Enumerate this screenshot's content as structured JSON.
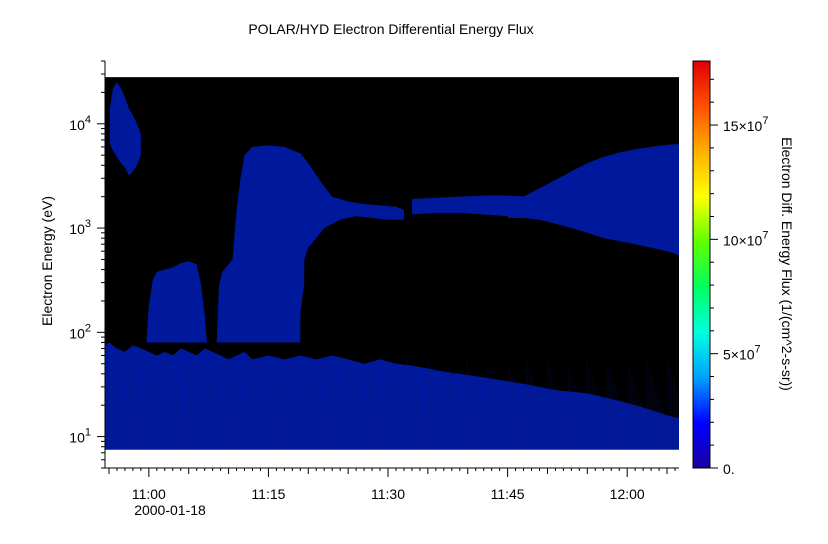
{
  "chart_data": {
    "type": "heatmap",
    "title": "POLAR/HYD  Electron Differential Energy Flux",
    "xlabel": "",
    "ylabel": "Electron Energy (eV)",
    "x_tick_labels": [
      "11:00",
      "11:15",
      "11:30",
      "11:45",
      "12:00"
    ],
    "x_tick_minutes": [
      660,
      675,
      690,
      705,
      720
    ],
    "x_range_minutes": [
      654.5,
      726.5
    ],
    "date_label": "2000-01-18",
    "y_scale": "log",
    "ylim": [
      5,
      40000
    ],
    "y_tick_values": [
      10,
      100,
      1000,
      10000
    ],
    "y_tick_labels": [
      {
        "base": "10",
        "exp": "1"
      },
      {
        "base": "10",
        "exp": "2"
      },
      {
        "base": "10",
        "exp": "3"
      },
      {
        "base": "10",
        "exp": "4"
      }
    ],
    "data_energy_range": [
      7.5,
      28000
    ],
    "background_color": "#000000",
    "colorbar": {
      "label": "Electron Diff. Energy Flux (1/(cm^2-s-sr))",
      "range": [
        0,
        178000000
      ],
      "tick_labels": [
        "0.",
        "5×10",
        "10×10",
        "15×10"
      ],
      "tick_exponents": [
        "",
        "7",
        "7",
        "7"
      ],
      "tick_values": [
        0,
        50000000,
        100000000,
        150000000
      ],
      "colors": [
        "#1a00a0",
        "#0000ff",
        "#00a0ff",
        "#00ffe0",
        "#00ff60",
        "#60ff00",
        "#ffff00",
        "#ffb000",
        "#ff5000",
        "#e00000"
      ]
    },
    "flux_regions": [
      {
        "name": "low-energy",
        "color": "#00199c",
        "time_start": 654.5,
        "time_end": 726.5,
        "upper_energy": [
          [
            654.5,
            75
          ],
          [
            655,
            80
          ],
          [
            656,
            70
          ],
          [
            657,
            65
          ],
          [
            658,
            75
          ],
          [
            659,
            70
          ],
          [
            660,
            65
          ],
          [
            661,
            60
          ],
          [
            662,
            65
          ],
          [
            663,
            60
          ],
          [
            664,
            70
          ],
          [
            665,
            65
          ],
          [
            666,
            60
          ],
          [
            667,
            70
          ],
          [
            668,
            65
          ],
          [
            669,
            60
          ],
          [
            670,
            55
          ],
          [
            671,
            60
          ],
          [
            672,
            65
          ],
          [
            673,
            55
          ],
          [
            675,
            60
          ],
          [
            677,
            55
          ],
          [
            679,
            60
          ],
          [
            681,
            55
          ],
          [
            683,
            60
          ],
          [
            685,
            55
          ],
          [
            687,
            50
          ],
          [
            689,
            55
          ],
          [
            691,
            50
          ],
          [
            693,
            48
          ],
          [
            695,
            45
          ],
          [
            697,
            42
          ],
          [
            699,
            40
          ],
          [
            701,
            38
          ],
          [
            703,
            36
          ],
          [
            705,
            34
          ],
          [
            707,
            32
          ],
          [
            709,
            30
          ],
          [
            711,
            28
          ],
          [
            713,
            27
          ],
          [
            715,
            26
          ],
          [
            717,
            24
          ],
          [
            719,
            22
          ],
          [
            721,
            20
          ],
          [
            723,
            18
          ],
          [
            725,
            16
          ],
          [
            726.5,
            15
          ]
        ]
      },
      {
        "name": "high-energy-early-burst",
        "color": "#00199c",
        "points": [
          [
            655.1,
            14000
          ],
          [
            655.5,
            22000
          ],
          [
            656,
            25000
          ],
          [
            656.5,
            22000
          ],
          [
            657,
            18000
          ],
          [
            657.5,
            14000
          ],
          [
            658,
            12000
          ],
          [
            658.5,
            10000
          ],
          [
            659,
            8000
          ],
          [
            659,
            5000
          ],
          [
            658.5,
            4000
          ],
          [
            658,
            3500
          ],
          [
            657.5,
            3200
          ],
          [
            657,
            3800
          ],
          [
            656.5,
            4200
          ],
          [
            656,
            4800
          ],
          [
            655.5,
            5500
          ],
          [
            655.1,
            6500
          ]
        ]
      },
      {
        "name": "mid-energy-ramp-11-05",
        "color": "#00199c",
        "points": [
          [
            659.7,
            80
          ],
          [
            660,
            180
          ],
          [
            660.5,
            320
          ],
          [
            661,
            380
          ],
          [
            662,
            400
          ],
          [
            663,
            420
          ],
          [
            664,
            460
          ],
          [
            665,
            480
          ],
          [
            666,
            450
          ],
          [
            666.5,
            300
          ],
          [
            667,
            150
          ],
          [
            667.3,
            80
          ]
        ]
      },
      {
        "name": "mid-energy-ramp-11-10",
        "color": "#00199c",
        "points": [
          [
            668.5,
            80
          ],
          [
            668.8,
            280
          ],
          [
            669.2,
            380
          ],
          [
            670,
            450
          ],
          [
            670.5,
            500
          ],
          [
            671,
            1500
          ],
          [
            671.5,
            3000
          ],
          [
            672,
            5000
          ],
          [
            673,
            6000
          ],
          [
            675,
            6200
          ],
          [
            677,
            6000
          ],
          [
            679,
            5200
          ],
          [
            680,
            4200
          ],
          [
            681,
            3200
          ],
          [
            682,
            2500
          ],
          [
            683,
            2000
          ],
          [
            685,
            1800
          ],
          [
            687,
            1700
          ],
          [
            689,
            1650
          ],
          [
            691,
            1600
          ],
          [
            692,
            1500
          ],
          [
            692,
            1200
          ],
          [
            690,
            1200
          ],
          [
            688,
            1250
          ],
          [
            686,
            1300
          ],
          [
            684,
            1200
          ],
          [
            682,
            1000
          ],
          [
            681,
            800
          ],
          [
            680,
            650
          ],
          [
            679.5,
            500
          ],
          [
            679.5,
            300
          ],
          [
            679,
            150
          ],
          [
            679,
            80
          ]
        ]
      },
      {
        "name": "mid-energy-band-11-30-11-45",
        "color": "#00199c",
        "points": [
          [
            693,
            1900
          ],
          [
            696,
            1950
          ],
          [
            699,
            2000
          ],
          [
            702,
            2050
          ],
          [
            705,
            2050
          ],
          [
            708,
            2000
          ],
          [
            708,
            1300
          ],
          [
            705,
            1300
          ],
          [
            702,
            1350
          ],
          [
            699,
            1400
          ],
          [
            696,
            1400
          ],
          [
            693,
            1350
          ]
        ]
      },
      {
        "name": "high-energy-late-spread",
        "color": "#00199c",
        "points": [
          [
            705,
            1600
          ],
          [
            707,
            2000
          ],
          [
            709,
            2400
          ],
          [
            711,
            2900
          ],
          [
            713,
            3500
          ],
          [
            715,
            4200
          ],
          [
            717,
            4800
          ],
          [
            719,
            5300
          ],
          [
            721,
            5700
          ],
          [
            723,
            6000
          ],
          [
            725,
            6300
          ],
          [
            726.5,
            6400
          ],
          [
            726.5,
            550
          ],
          [
            725,
            600
          ],
          [
            723,
            650
          ],
          [
            721,
            700
          ],
          [
            719,
            750
          ],
          [
            717,
            800
          ],
          [
            715,
            900
          ],
          [
            713,
            1000
          ],
          [
            711,
            1100
          ],
          [
            709,
            1200
          ],
          [
            707,
            1250
          ],
          [
            705,
            1250
          ]
        ]
      }
    ]
  }
}
